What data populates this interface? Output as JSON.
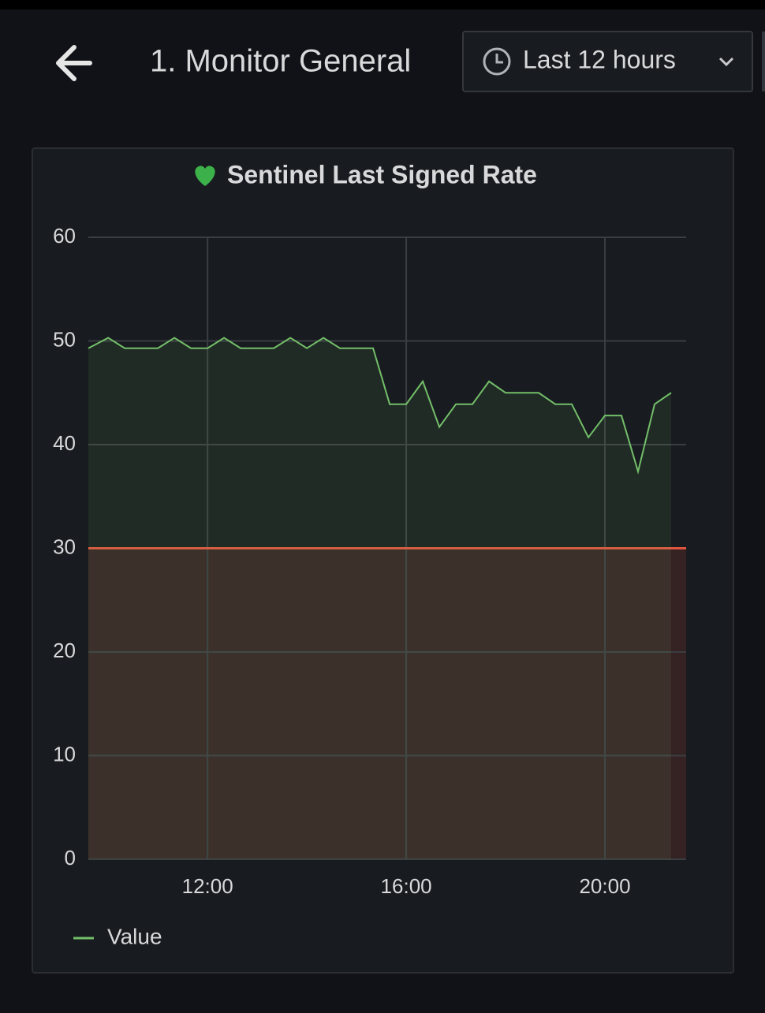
{
  "header": {
    "title": "1. Monitor General",
    "time_range": "Last 12 hours"
  },
  "chart_data": {
    "type": "line",
    "title": "Sentinel Last Signed Rate",
    "x": [
      9.6,
      10,
      10.333,
      11,
      11.333,
      11.667,
      12,
      12.333,
      12.667,
      13.333,
      13.667,
      14,
      14.333,
      14.667,
      15.333,
      15.667,
      16,
      16.333,
      16.667,
      17,
      17.333,
      17.667,
      18,
      18.667,
      19,
      19.333,
      19.667,
      20,
      20.333,
      20.667,
      21,
      21.333
    ],
    "series": [
      {
        "name": "Value",
        "color": "#73bf69",
        "values": [
          49.3,
          50.3,
          49.3,
          49.3,
          50.3,
          49.3,
          49.3,
          50.3,
          49.3,
          49.3,
          50.3,
          49.3,
          50.3,
          49.3,
          49.3,
          43.9,
          43.9,
          46.1,
          41.7,
          43.9,
          43.9,
          46.1,
          45,
          45,
          43.9,
          43.9,
          40.7,
          42.8,
          42.8,
          37.4,
          43.9,
          45
        ]
      }
    ],
    "xlim": [
      9.6,
      21.635
    ],
    "xticks": [
      {
        "value": 12,
        "label": "12:00"
      },
      {
        "value": 16,
        "label": "16:00"
      },
      {
        "value": 20,
        "label": "20:00"
      }
    ],
    "ylim": [
      0,
      60
    ],
    "yticks": [
      0,
      10,
      20,
      30,
      40,
      50,
      60
    ],
    "threshold": 30,
    "threshold_color": "#e0533d",
    "grid": true,
    "legend": "bottom-left"
  }
}
